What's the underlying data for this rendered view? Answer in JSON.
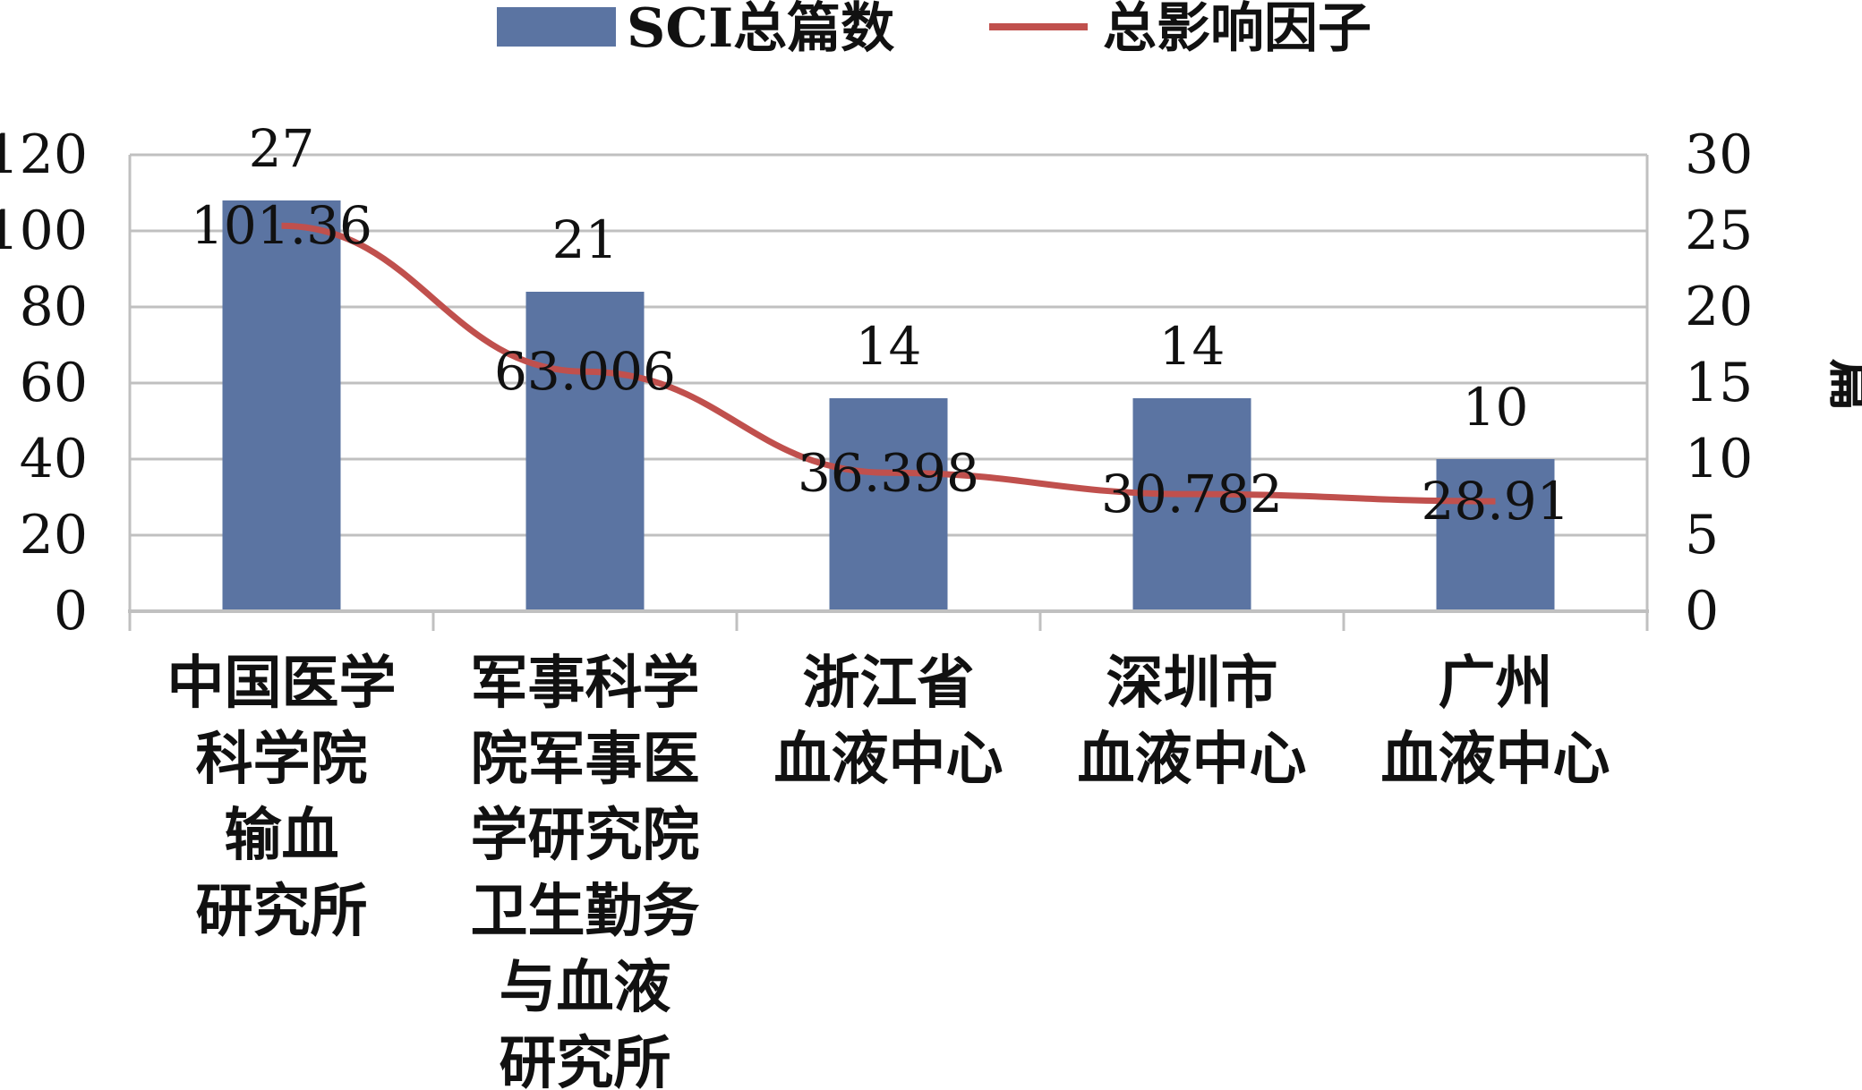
{
  "chart_data": {
    "type": "bar",
    "categories": [
      [
        "中国医学",
        "科学院",
        "输血",
        "研究所"
      ],
      [
        "军事科学",
        "院军事医",
        "学研究院",
        "卫生勤务",
        "与血液",
        "研究所"
      ],
      [
        "浙江省",
        "血液中心"
      ],
      [
        "深圳市",
        "血液中心"
      ],
      [
        "广州",
        "血液中心"
      ]
    ],
    "series": [
      {
        "name": "SCI总篇数",
        "type": "bar",
        "axis": "right",
        "values": [
          27,
          21,
          14,
          14,
          10
        ],
        "color": "#5b74a2"
      },
      {
        "name": "总影响因子",
        "type": "line",
        "axis": "left",
        "values": [
          101.36,
          63.006,
          36.398,
          30.782,
          28.91
        ],
        "value_labels": [
          "101.36",
          "63.006",
          "36.398",
          "30.782",
          "28.91"
        ],
        "color": "#c0504d"
      }
    ],
    "left_axis": {
      "ticks": [
        "0",
        "20",
        "40",
        "60",
        "80",
        "100",
        "120"
      ],
      "ylim": [
        0,
        120
      ]
    },
    "right_axis": {
      "ticks": [
        "0",
        "5",
        "10",
        "15",
        "20",
        "25",
        "30"
      ],
      "ylim": [
        0,
        30
      ],
      "label": "篇"
    },
    "grid": true,
    "legend": "top"
  }
}
